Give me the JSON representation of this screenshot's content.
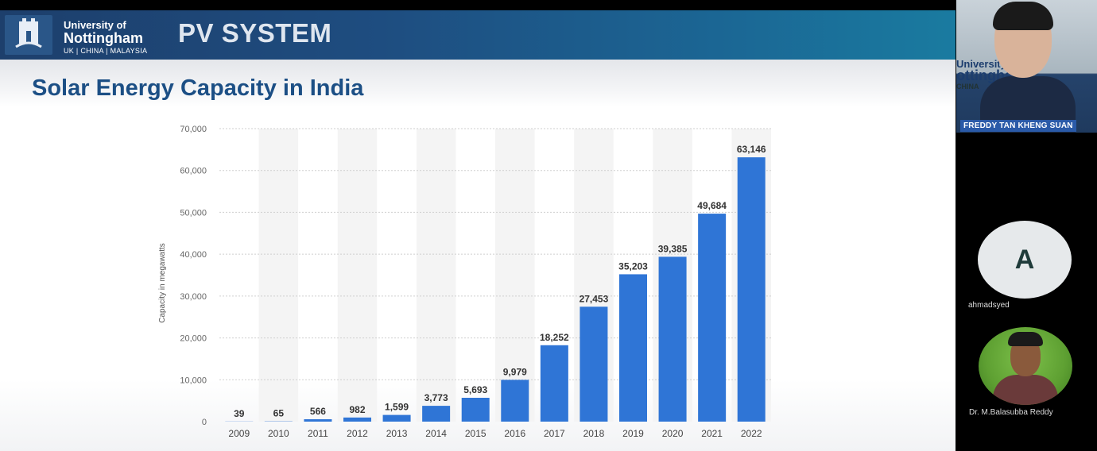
{
  "slide": {
    "university_line1": "University of",
    "university_line2": "Nottingham",
    "university_line3": "UK | CHINA | MALAYSIA",
    "header_title": "PV SYSTEM",
    "slide_title": "Solar Energy Capacity in India"
  },
  "chart_data": {
    "type": "bar",
    "title": "",
    "xlabel": "",
    "ylabel": "Capacity in megawatts",
    "categories": [
      "2009",
      "2010",
      "2011",
      "2012",
      "2013",
      "2014",
      "2015",
      "2016",
      "2017",
      "2018",
      "2019",
      "2020",
      "2021",
      "2022"
    ],
    "values": [
      39,
      65,
      566,
      982,
      1599,
      3773,
      5693,
      9979,
      18252,
      27453,
      35203,
      39385,
      49684,
      63146
    ],
    "value_labels": [
      "39",
      "65",
      "566",
      "982",
      "1,599",
      "3,773",
      "5,693",
      "9,979",
      "18,252",
      "27,453",
      "35,203",
      "39,385",
      "49,684",
      "63,146"
    ],
    "ylim": [
      0,
      70000
    ],
    "yticks": [
      0,
      10000,
      20000,
      30000,
      40000,
      50000,
      60000,
      70000
    ],
    "ytick_labels": [
      "0",
      "10,000",
      "20,000",
      "30,000",
      "40,000",
      "50,000",
      "60,000",
      "70,000"
    ],
    "grid": true,
    "bar_color": "#2f75d6"
  },
  "participants": {
    "presenter_name": "FREDDY TAN KHENG SUAN",
    "presenter_bg_uni_line1": "University",
    "presenter_bg_uni_line2": "ottingham",
    "presenter_bg_uni_line3": "CHINA",
    "participant1_initial": "A",
    "participant1_name": "ahmadsyed",
    "participant2_name": "Dr. M.Balasubba Reddy"
  }
}
